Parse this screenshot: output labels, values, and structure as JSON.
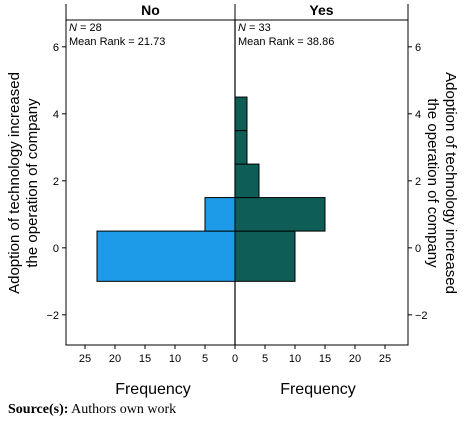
{
  "chart_data": {
    "type": "bar",
    "orientation": "horizontal-back-to-back",
    "panels": [
      {
        "name": "No",
        "stat_n_symbol": "N",
        "stat_n_value": "= 28",
        "stat_mean": "Mean Rank = 21.73",
        "color": "#1e9be8",
        "direction": "left",
        "bars": [
          {
            "y_low": -1,
            "y_high": 0.5,
            "frequency": 23
          },
          {
            "y_low": 0.5,
            "y_high": 1.5,
            "frequency": 5
          }
        ]
      },
      {
        "name": "Yes",
        "stat_n_symbol": "N",
        "stat_n_value": "= 33",
        "stat_mean": "Mean Rank = 38.86",
        "color": "#0e5e57",
        "direction": "right",
        "bars": [
          {
            "y_low": -1,
            "y_high": 0.5,
            "frequency": 10
          },
          {
            "y_low": 0.5,
            "y_high": 1.5,
            "frequency": 15
          },
          {
            "y_low": 1.5,
            "y_high": 2.5,
            "frequency": 4
          },
          {
            "y_low": 2.5,
            "y_high": 3.5,
            "frequency": 2
          },
          {
            "y_low": 3.5,
            "y_high": 4.5,
            "frequency": 2
          }
        ]
      }
    ],
    "ylabel": "Adoption of technology increased the operation of company",
    "ylabel_lines": [
      "Adoption of technology increased",
      "the operation of company"
    ],
    "xlabel": "Frequency",
    "yticks": [
      "-2",
      "0",
      "2",
      "4",
      "6"
    ],
    "ylim": [
      -2.9,
      6.8
    ],
    "xlim": [
      0,
      28
    ],
    "xticks": [
      "0",
      "5",
      "10",
      "15",
      "20",
      "25"
    ]
  },
  "source": {
    "label": "Source(s):",
    "text": " Authors own work"
  }
}
